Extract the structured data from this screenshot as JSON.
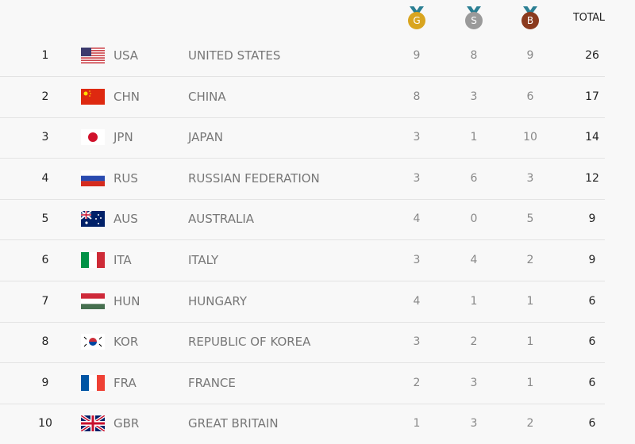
{
  "header": {
    "gold_label": "G",
    "silver_label": "S",
    "bronze_label": "B",
    "total_label": "TOTAL",
    "colors": {
      "gold": "#d9a520",
      "silver": "#9a9a9a",
      "bronze": "#8b3a1e",
      "ribbon": "#2b7f93"
    }
  },
  "rows": [
    {
      "rank": "1",
      "code": "USA",
      "name": "UNITED STATES",
      "gold": "9",
      "silver": "8",
      "bronze": "9",
      "total": "26",
      "flag": "usa-flag-icon"
    },
    {
      "rank": "2",
      "code": "CHN",
      "name": "CHINA",
      "gold": "8",
      "silver": "3",
      "bronze": "6",
      "total": "17",
      "flag": "china-flag-icon"
    },
    {
      "rank": "3",
      "code": "JPN",
      "name": "JAPAN",
      "gold": "3",
      "silver": "1",
      "bronze": "10",
      "total": "14",
      "flag": "japan-flag-icon"
    },
    {
      "rank": "4",
      "code": "RUS",
      "name": "RUSSIAN FEDERATION",
      "gold": "3",
      "silver": "6",
      "bronze": "3",
      "total": "12",
      "flag": "russia-flag-icon"
    },
    {
      "rank": "5",
      "code": "AUS",
      "name": "AUSTRALIA",
      "gold": "4",
      "silver": "0",
      "bronze": "5",
      "total": "9",
      "flag": "australia-flag-icon"
    },
    {
      "rank": "6",
      "code": "ITA",
      "name": "ITALY",
      "gold": "3",
      "silver": "4",
      "bronze": "2",
      "total": "9",
      "flag": "italy-flag-icon"
    },
    {
      "rank": "7",
      "code": "HUN",
      "name": "HUNGARY",
      "gold": "4",
      "silver": "1",
      "bronze": "1",
      "total": "6",
      "flag": "hungary-flag-icon"
    },
    {
      "rank": "8",
      "code": "KOR",
      "name": "REPUBLIC OF KOREA",
      "gold": "3",
      "silver": "2",
      "bronze": "1",
      "total": "6",
      "flag": "korea-flag-icon"
    },
    {
      "rank": "9",
      "code": "FRA",
      "name": "FRANCE",
      "gold": "2",
      "silver": "3",
      "bronze": "1",
      "total": "6",
      "flag": "france-flag-icon"
    },
    {
      "rank": "10",
      "code": "GBR",
      "name": "GREAT BRITAIN",
      "gold": "1",
      "silver": "3",
      "bronze": "2",
      "total": "6",
      "flag": "uk-flag-icon"
    }
  ]
}
